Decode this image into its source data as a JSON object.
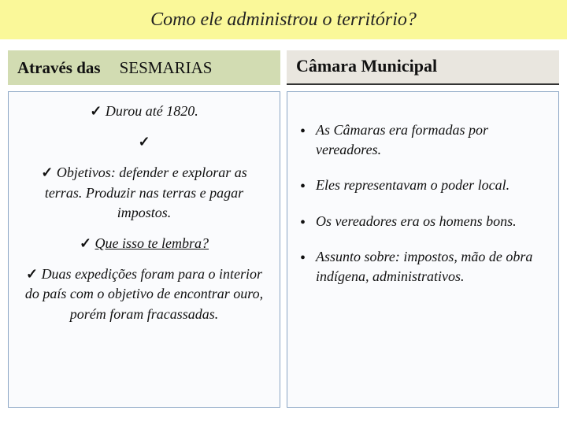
{
  "header": {
    "title": "Como ele administrou o território?"
  },
  "left": {
    "subheader_prefix": "Através das",
    "subheader_main": "SESMARIAS",
    "items": [
      {
        "text": "Durou até 1820.",
        "underline": false,
        "standalone": false
      },
      {
        "text": "",
        "underline": false,
        "standalone": true
      },
      {
        "text": "Objetivos: defender e explorar as terras. Produzir nas terras e pagar impostos.",
        "underline": false,
        "standalone": false
      },
      {
        "text": "Que isso te lembra?",
        "underline": true,
        "standalone": false
      },
      {
        "text": "Duas expedições foram para o interior do país com o objetivo de encontrar ouro, porém foram fracassadas.",
        "underline": false,
        "standalone": false
      }
    ]
  },
  "right": {
    "subheader": "Câmara Municipal",
    "items": [
      "As Câmaras era formadas por vereadores.",
      "Eles representavam o poder local.",
      "Os vereadores era os homens bons.",
      "Assunto sobre: impostos, mão de obra indígena, administrativos."
    ]
  },
  "colors": {
    "header_bg": "#faf899",
    "sub_left_bg": "#d2dcb2",
    "sub_right_bg": "#e9e6df",
    "box_border": "#8aa5c4",
    "box_bg": "#fafbfd"
  }
}
